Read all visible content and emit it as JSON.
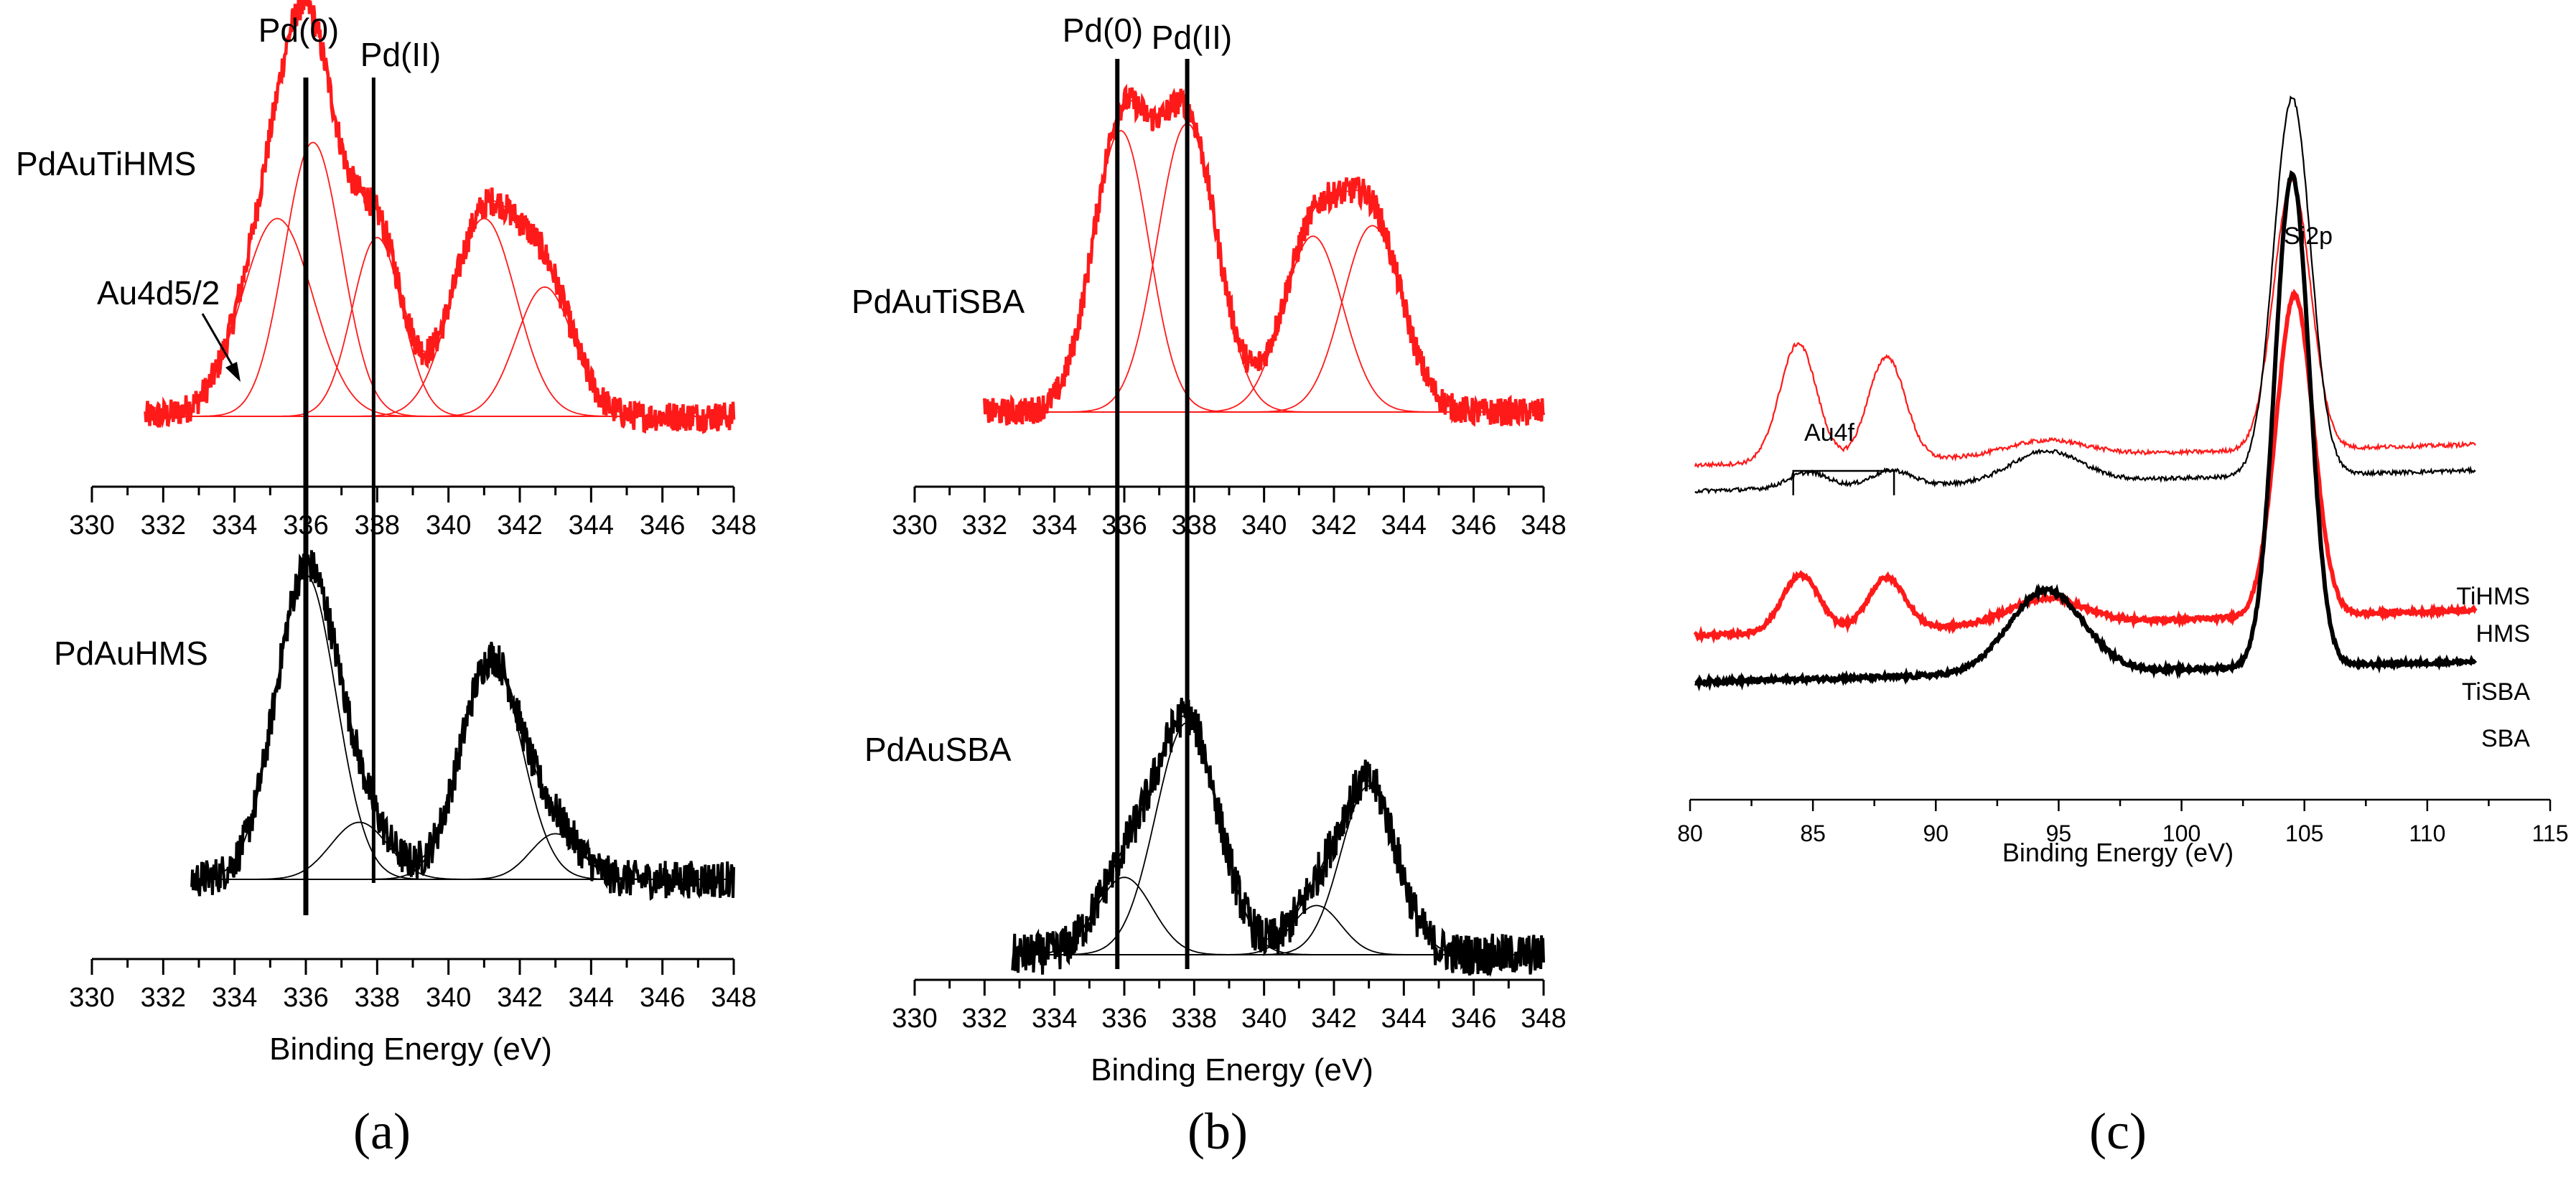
{
  "figure": {
    "panel_letters": [
      "(a)",
      "(b)",
      "(c)"
    ]
  },
  "colors": {
    "red": "#ff1a1a",
    "black": "#000000"
  },
  "chart_data": [
    {
      "panel": "a",
      "type": "line",
      "title": "",
      "xlabel": "Binding Energy (eV)",
      "ylabel": "",
      "xlim": [
        330,
        348
      ],
      "xticks": [
        330,
        332,
        334,
        336,
        338,
        340,
        342,
        344,
        346,
        348
      ],
      "reference_lines": [
        {
          "label": "Pd(0)",
          "x": 336.0
        },
        {
          "label": "Pd(II)",
          "x": 337.9
        }
      ],
      "annotations": [
        {
          "text": "Au4d5/2",
          "arrow_to_x": 334.0
        }
      ],
      "series": [
        {
          "name": "PdAuTiHMS",
          "color": "red",
          "x_range": [
            331.5,
            348.0
          ],
          "noise": 0.04,
          "peaks": [
            {
              "center": 335.2,
              "height": 0.52,
              "sigma": 1.0
            },
            {
              "center": 336.2,
              "height": 0.72,
              "sigma": 0.8
            },
            {
              "center": 338.0,
              "height": 0.47,
              "sigma": 0.7
            },
            {
              "center": 341.0,
              "height": 0.52,
              "sigma": 0.9
            },
            {
              "center": 342.7,
              "height": 0.34,
              "sigma": 0.8
            }
          ]
        },
        {
          "name": "PdAuHMS",
          "color": "black",
          "x_range": [
            332.8,
            348.0
          ],
          "noise": 0.05,
          "peaks": [
            {
              "center": 336.0,
              "height": 0.8,
              "sigma": 0.85
            },
            {
              "center": 337.5,
              "height": 0.15,
              "sigma": 0.8
            },
            {
              "center": 341.2,
              "height": 0.58,
              "sigma": 0.85
            },
            {
              "center": 343.0,
              "height": 0.12,
              "sigma": 0.7
            }
          ]
        }
      ]
    },
    {
      "panel": "b",
      "type": "line",
      "title": "",
      "xlabel": "Binding Energy (eV)",
      "ylabel": "",
      "xlim": [
        330,
        348
      ],
      "xticks": [
        330,
        332,
        334,
        336,
        338,
        340,
        342,
        344,
        346,
        348
      ],
      "reference_lines": [
        {
          "label": "Pd(0)",
          "x": 335.8
        },
        {
          "label": "Pd(II)",
          "x": 337.8
        }
      ],
      "series": [
        {
          "name": "PdAuTiSBA",
          "color": "red",
          "x_range": [
            332.0,
            348.0
          ],
          "noise": 0.04,
          "peaks": [
            {
              "center": 335.9,
              "height": 0.8,
              "sigma": 0.8
            },
            {
              "center": 337.8,
              "height": 0.82,
              "sigma": 0.85
            },
            {
              "center": 341.4,
              "height": 0.5,
              "sigma": 0.85
            },
            {
              "center": 343.1,
              "height": 0.53,
              "sigma": 0.85
            }
          ]
        },
        {
          "name": "PdAuSBA",
          "color": "black",
          "x_range": [
            332.8,
            348.0
          ],
          "noise": 0.06,
          "peaks": [
            {
              "center": 336.0,
              "height": 0.22,
              "sigma": 0.8
            },
            {
              "center": 337.8,
              "height": 0.66,
              "sigma": 0.9
            },
            {
              "center": 341.5,
              "height": 0.14,
              "sigma": 0.7
            },
            {
              "center": 343.0,
              "height": 0.48,
              "sigma": 0.8
            }
          ]
        }
      ]
    },
    {
      "panel": "c",
      "type": "line",
      "title": "",
      "xlabel": "Binding Energy (eV)",
      "ylabel": "",
      "xlim": [
        80,
        115
      ],
      "xticks": [
        80,
        85,
        90,
        95,
        100,
        105,
        110,
        115
      ],
      "annotations": [
        {
          "text": "Au4f",
          "bracket_x": [
            84.2,
            88.3
          ]
        },
        {
          "text": "Si2p",
          "x": 104.6
        }
      ],
      "series": [
        {
          "name": "TiHMS",
          "color": "red",
          "width": "thin",
          "baseline": 0.6,
          "baseline_end": 0.64,
          "noise": 0.004,
          "peaks": [
            {
              "center": 84.4,
              "height": 0.23,
              "sigma": 0.75
            },
            {
              "center": 88.0,
              "height": 0.2,
              "sigma": 0.75
            },
            {
              "center": 94.5,
              "height": 0.03,
              "sigma": 1.6
            },
            {
              "center": 104.5,
              "height": 0.52,
              "sigma": 0.75
            }
          ]
        },
        {
          "name": "HMS",
          "color": "black",
          "width": "thin",
          "baseline": 0.55,
          "baseline_end": 0.59,
          "noise": 0.004,
          "peaks": [
            {
              "center": 84.8,
              "height": 0.03,
              "sigma": 0.8
            },
            {
              "center": 88.2,
              "height": 0.03,
              "sigma": 0.8
            },
            {
              "center": 94.5,
              "height": 0.06,
              "sigma": 1.4
            },
            {
              "center": 104.5,
              "height": 0.73,
              "sigma": 0.75
            }
          ]
        },
        {
          "name": "TiSBA",
          "color": "red",
          "width": "thick",
          "baseline": 0.27,
          "baseline_end": 0.32,
          "noise": 0.004,
          "peaks": [
            {
              "center": 84.5,
              "height": 0.11,
              "sigma": 0.75
            },
            {
              "center": 88.0,
              "height": 0.1,
              "sigma": 0.75
            },
            {
              "center": 94.5,
              "height": 0.05,
              "sigma": 1.5
            },
            {
              "center": 104.6,
              "height": 0.62,
              "sigma": 0.75
            }
          ]
        },
        {
          "name": "SBA",
          "color": "black",
          "width": "thick",
          "baseline": 0.18,
          "baseline_end": 0.22,
          "noise": 0.004,
          "peaks": [
            {
              "center": 94.5,
              "height": 0.16,
              "sigma": 1.5
            },
            {
              "center": 104.5,
              "height": 0.95,
              "sigma": 0.7
            }
          ]
        }
      ]
    }
  ]
}
